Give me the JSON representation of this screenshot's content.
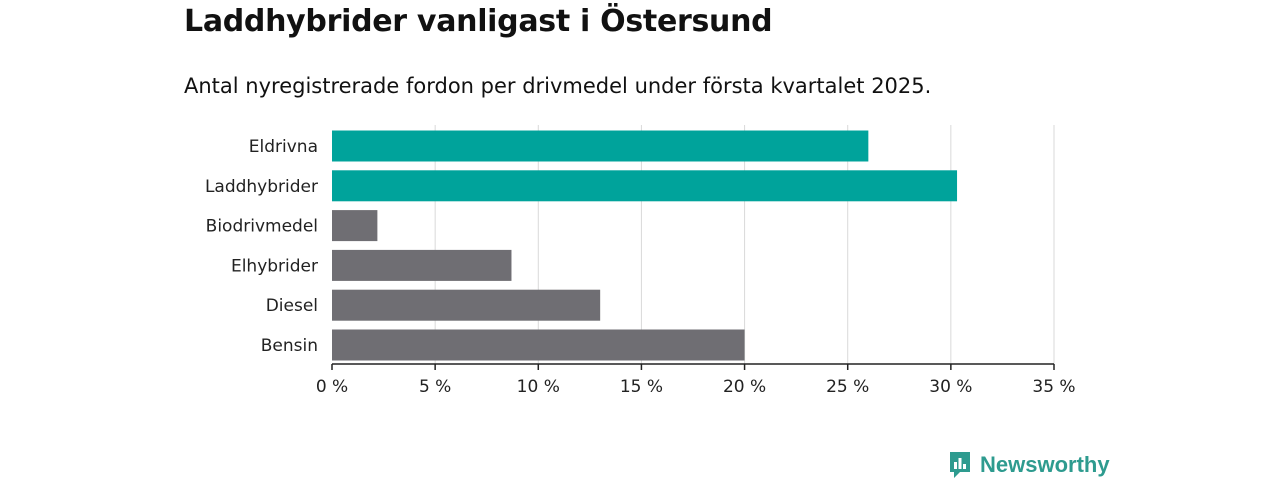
{
  "header": {
    "title": "Laddhybrider vanligast i Östersund",
    "subtitle": "Antal nyregistrerade fordon per drivmedel under första kvartalet 2025."
  },
  "chart_data": {
    "type": "bar",
    "orientation": "horizontal",
    "categories": [
      "Eldrivna",
      "Laddhybrider",
      "Biodrivmedel",
      "Elhybrider",
      "Diesel",
      "Bensin"
    ],
    "values": [
      26.0,
      30.3,
      2.2,
      8.7,
      13.0,
      20.0
    ],
    "colors": [
      "#00a39b",
      "#00a39b",
      "#6f6e73",
      "#6f6e73",
      "#6f6e73",
      "#6f6e73"
    ],
    "xlim": [
      0,
      35
    ],
    "x_ticks": [
      0,
      5,
      10,
      15,
      20,
      25,
      30,
      35
    ],
    "x_tick_labels": [
      "0 %",
      "5 %",
      "10 %",
      "15 %",
      "20 %",
      "25 %",
      "30 %",
      "35 %"
    ],
    "grid": true
  },
  "branding": {
    "name": "Newsworthy",
    "icon": "newsworthy-logo-icon",
    "color": "#2e9b8f"
  }
}
